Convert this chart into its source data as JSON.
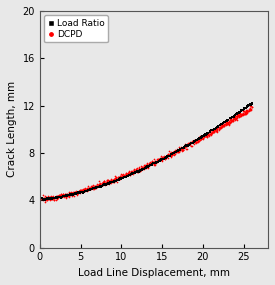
{
  "title": "",
  "xlabel": "Load Line Displacement, mm",
  "ylabel": "Crack Length, mm",
  "xlim": [
    0,
    28
  ],
  "ylim": [
    0,
    20
  ],
  "xticks": [
    0,
    5,
    10,
    15,
    20,
    25
  ],
  "yticks": [
    0,
    4,
    8,
    12,
    16,
    20
  ],
  "load_ratio_color": "#000000",
  "dcpd_color": "#ff0000",
  "legend_labels": [
    "Load Ratio",
    "DCPD"
  ],
  "background_color": "#e8e8e8",
  "axes_background": "#e8e8e8",
  "x_start": 0.2,
  "x_end": 26.0,
  "y_start": 4.1,
  "y_end_lr": 12.2,
  "y_end_dcpd": 11.8,
  "n_points_lr": 350,
  "n_points_dcpd": 900,
  "noise_x_lr": 0.04,
  "noise_y_lr": 0.03,
  "noise_x_dcpd": 0.05,
  "noise_y_dcpd": 0.1,
  "marker_size_lr": 1.5,
  "marker_size_dcpd": 1.5
}
